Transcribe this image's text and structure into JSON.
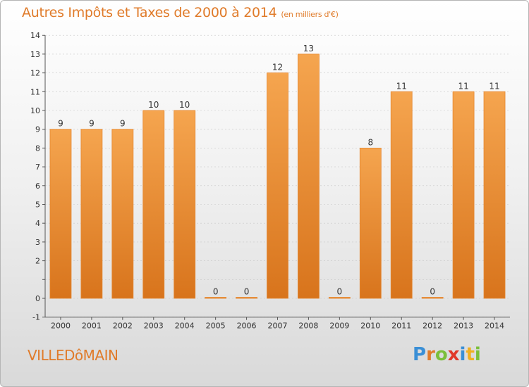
{
  "header": {
    "title": "Autres Impôts et Taxes de 2000 à 2014",
    "unit": "(en milliers d'€)"
  },
  "footer": {
    "commune": "VILLEDôMAIN",
    "brand_letters": [
      "P",
      "r",
      "o",
      "x",
      "i",
      "t",
      "i"
    ],
    "brand_colors": [
      "#3a8fd6",
      "#e07b2a",
      "#7bbf3a",
      "#e03a2a",
      "#3a8fd6",
      "#f0b020",
      "#7bbf3a"
    ]
  },
  "colors": {
    "bar_top": "#f5a54f",
    "bar_bottom": "#d8741c",
    "bar_border": "#e5862e",
    "axis": "#555555",
    "grid": "#c8c8c8",
    "text": "#333333"
  },
  "chart_data": {
    "type": "bar",
    "categories": [
      "2000",
      "2001",
      "2002",
      "2003",
      "2004",
      "2005",
      "2006",
      "2007",
      "2008",
      "2009",
      "2010",
      "2011",
      "2012",
      "2013",
      "2014"
    ],
    "values": [
      9,
      9,
      9,
      10,
      10,
      0,
      0,
      12,
      13,
      0,
      8,
      11,
      0,
      11,
      11
    ],
    "data_labels": [
      "9",
      "9",
      "9",
      "10",
      "10",
      "0",
      "0",
      "12",
      "13",
      "0",
      "8",
      "11",
      "0",
      "11",
      "11"
    ],
    "y_ticks": [
      -1,
      0,
      1,
      2,
      3,
      4,
      5,
      6,
      7,
      8,
      9,
      10,
      11,
      12,
      13,
      14
    ],
    "y_tick_labels": [
      "-1",
      "0",
      "",
      "2",
      "3",
      "4",
      "5",
      "6",
      "7",
      "8",
      "9",
      "10",
      "11",
      "12",
      "13",
      "14"
    ],
    "ylim": [
      -1,
      14
    ],
    "grid": true,
    "title": "Autres Impôts et Taxes de 2000 à 2014",
    "xlabel": "",
    "ylabel": ""
  }
}
